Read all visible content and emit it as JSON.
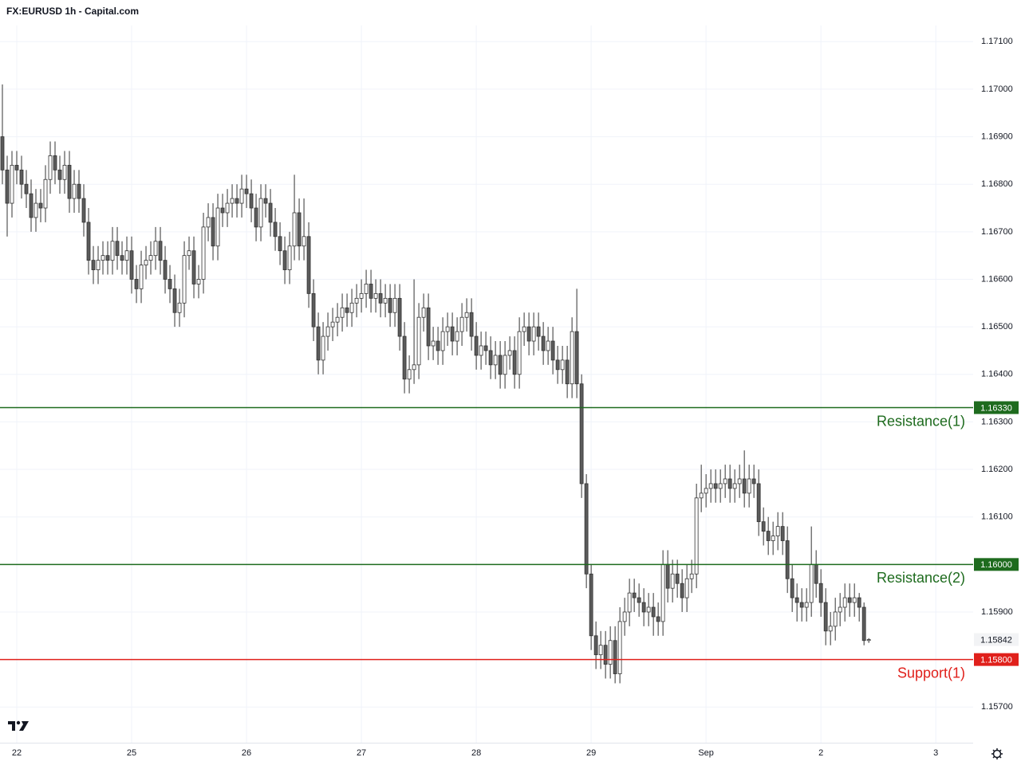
{
  "chart_data": {
    "type": "candlestick",
    "title": "FX:EURUSD 1h - Capital.com",
    "up_color": "#ffffff",
    "down_color": "#5b5b5b",
    "wick_color": "#333333",
    "grid": true,
    "open": [
      1.169,
      1.1683,
      1.1676,
      1.1684,
      1.1683,
      1.168,
      1.1678,
      1.1673,
      1.1676,
      1.1675,
      1.1681,
      1.1686,
      1.1683,
      1.1681,
      1.1684,
      1.1677,
      1.168,
      1.1677,
      1.1672,
      1.1664,
      1.1662,
      1.1664,
      1.1665,
      1.1664,
      1.1668,
      1.1665,
      1.1664,
      1.1666,
      1.166,
      1.1658,
      1.1663,
      1.1664,
      1.1665,
      1.1668,
      1.1664,
      1.166,
      1.1658,
      1.1653,
      1.1655,
      1.1665,
      1.1666,
      1.1659,
      1.166,
      1.1671,
      1.1673,
      1.1667,
      1.1675,
      1.1674,
      1.1676,
      1.1677,
      1.1676,
      1.1679,
      1.1678,
      1.1675,
      1.1671,
      1.1677,
      1.1676,
      1.1672,
      1.1669,
      1.1666,
      1.1662,
      1.1667,
      1.1674,
      1.1667,
      1.1669,
      1.1657,
      1.165,
      1.1643,
      1.1648,
      1.165,
      1.1651,
      1.1652,
      1.1654,
      1.1653,
      1.1655,
      1.1656,
      1.1657,
      1.1659,
      1.1656,
      1.1657,
      1.1655,
      1.1656,
      1.1653,
      1.1656,
      1.1648,
      1.1639,
      1.1641,
      1.1642,
      1.1652,
      1.1654,
      1.1646,
      1.1647,
      1.1645,
      1.1649,
      1.165,
      1.1647,
      1.1649,
      1.1652,
      1.1653,
      1.1648,
      1.1644,
      1.1646,
      1.1645,
      1.1642,
      1.1644,
      1.164,
      1.1644,
      1.1645,
      1.164,
      1.1649,
      1.165,
      1.1647,
      1.165,
      1.1648,
      1.1645,
      1.1647,
      1.1643,
      1.1641,
      1.1643,
      1.1638,
      1.1649,
      1.1638,
      1.1617,
      1.1598,
      1.1585,
      1.1581,
      1.1583,
      1.1579,
      1.1584,
      1.1577,
      1.1588,
      1.159,
      1.1594,
      1.1593,
      1.1592,
      1.159,
      1.1591,
      1.1589,
      1.1588,
      1.16,
      1.1595,
      1.1598,
      1.1596,
      1.1593,
      1.1597,
      1.1598,
      1.1614,
      1.1615,
      1.1616,
      1.1617,
      1.1616,
      1.1617,
      1.1618,
      1.1616,
      1.1617,
      1.1618,
      1.1615,
      1.1618,
      1.1617,
      1.1609,
      1.1607,
      1.1605,
      1.1606,
      1.1608,
      1.1605,
      1.1597,
      1.1593,
      1.1592,
      1.1591,
      1.1592,
      1.16,
      1.1596,
      1.1592,
      1.1586,
      1.1587,
      1.159,
      1.1591,
      1.1593,
      1.1592,
      1.1593,
      1.1591,
      1.1584
    ],
    "high": [
      1.1701,
      1.1686,
      1.1687,
      1.1687,
      1.1686,
      1.1683,
      1.1681,
      1.1679,
      1.1679,
      1.1684,
      1.1689,
      1.1689,
      1.1686,
      1.1687,
      1.1687,
      1.1683,
      1.1683,
      1.168,
      1.1675,
      1.1667,
      1.1667,
      1.1668,
      1.1668,
      1.1671,
      1.1671,
      1.1668,
      1.1669,
      1.1669,
      1.1663,
      1.1666,
      1.1667,
      1.1668,
      1.1671,
      1.1671,
      1.1667,
      1.1663,
      1.1661,
      1.1658,
      1.1668,
      1.1669,
      1.1669,
      1.1663,
      1.1674,
      1.1676,
      1.1676,
      1.1678,
      1.1678,
      1.1679,
      1.168,
      1.168,
      1.1682,
      1.1682,
      1.1681,
      1.1678,
      1.168,
      1.168,
      1.1679,
      1.1675,
      1.1672,
      1.1669,
      1.167,
      1.1682,
      1.1677,
      1.1677,
      1.1672,
      1.166,
      1.1653,
      1.1651,
      1.1653,
      1.1654,
      1.1655,
      1.1657,
      1.1657,
      1.1658,
      1.1659,
      1.166,
      1.1662,
      1.1662,
      1.166,
      1.166,
      1.1659,
      1.1659,
      1.1659,
      1.1659,
      1.1651,
      1.1644,
      1.166,
      1.1655,
      1.1657,
      1.1657,
      1.165,
      1.165,
      1.1652,
      1.1653,
      1.1653,
      1.1652,
      1.1655,
      1.1656,
      1.1656,
      1.1651,
      1.1649,
      1.1649,
      1.1648,
      1.1647,
      1.1647,
      1.1647,
      1.1648,
      1.1648,
      1.1652,
      1.1653,
      1.1653,
      1.1653,
      1.1653,
      1.1651,
      1.165,
      1.165,
      1.1646,
      1.1646,
      1.1646,
      1.1652,
      1.1658,
      1.164,
      1.1619,
      1.16,
      1.1588,
      1.1586,
      1.1586,
      1.1587,
      1.1587,
      1.1591,
      1.1593,
      1.1597,
      1.1597,
      1.1596,
      1.1595,
      1.1594,
      1.1594,
      1.1592,
      1.1603,
      1.1603,
      1.1601,
      1.1601,
      1.1599,
      1.16,
      1.1601,
      1.1617,
      1.1621,
      1.1619,
      1.162,
      1.162,
      1.162,
      1.1621,
      1.1621,
      1.162,
      1.1621,
      1.1624,
      1.1621,
      1.1621,
      1.162,
      1.1612,
      1.161,
      1.1609,
      1.1611,
      1.1611,
      1.1608,
      1.16,
      1.1596,
      1.1595,
      1.1595,
      1.1608,
      1.1603,
      1.1599,
      1.1595,
      1.159,
      1.1593,
      1.1594,
      1.1596,
      1.1596,
      1.1596,
      1.1594,
      1.1592,
      1.15845
    ],
    "low": [
      1.168,
      1.1669,
      1.1673,
      1.168,
      1.1677,
      1.1675,
      1.167,
      1.167,
      1.1672,
      1.1672,
      1.1678,
      1.168,
      1.1678,
      1.1678,
      1.1674,
      1.1674,
      1.1674,
      1.1669,
      1.1661,
      1.1659,
      1.1659,
      1.1661,
      1.1661,
      1.1661,
      1.1662,
      1.1661,
      1.1661,
      1.1657,
      1.1655,
      1.1655,
      1.166,
      1.1661,
      1.1662,
      1.1661,
      1.1657,
      1.1655,
      1.165,
      1.165,
      1.1652,
      1.1662,
      1.1656,
      1.1656,
      1.1657,
      1.1668,
      1.1664,
      1.1664,
      1.1671,
      1.1671,
      1.1673,
      1.1673,
      1.1673,
      1.1675,
      1.1672,
      1.1668,
      1.1668,
      1.1673,
      1.1669,
      1.1666,
      1.1663,
      1.1659,
      1.1659,
      1.1664,
      1.1664,
      1.1664,
      1.1654,
      1.1647,
      1.164,
      1.164,
      1.1645,
      1.1647,
      1.1648,
      1.1649,
      1.165,
      1.165,
      1.1652,
      1.1653,
      1.1654,
      1.1653,
      1.1653,
      1.1652,
      1.1652,
      1.165,
      1.165,
      1.1645,
      1.1636,
      1.1636,
      1.1638,
      1.1639,
      1.1649,
      1.1643,
      1.1643,
      1.1642,
      1.1642,
      1.1646,
      1.1644,
      1.1644,
      1.1646,
      1.1649,
      1.1645,
      1.1641,
      1.1641,
      1.1642,
      1.1639,
      1.1639,
      1.1637,
      1.1637,
      1.1641,
      1.1637,
      1.1637,
      1.1646,
      1.1644,
      1.1644,
      1.1645,
      1.1642,
      1.1642,
      1.164,
      1.1638,
      1.1638,
      1.1635,
      1.1635,
      1.1635,
      1.1614,
      1.1595,
      1.1582,
      1.1578,
      1.1578,
      1.1576,
      1.1576,
      1.1575,
      1.1575,
      1.1585,
      1.1587,
      1.159,
      1.1589,
      1.1587,
      1.1587,
      1.1585,
      1.1585,
      1.1585,
      1.1592,
      1.1592,
      1.1593,
      1.159,
      1.159,
      1.1594,
      1.1595,
      1.1611,
      1.1612,
      1.1613,
      1.1613,
      1.1613,
      1.1614,
      1.1613,
      1.1613,
      1.1614,
      1.1612,
      1.1612,
      1.1614,
      1.1606,
      1.1604,
      1.1602,
      1.1602,
      1.1603,
      1.1602,
      1.1594,
      1.159,
      1.1588,
      1.1588,
      1.1588,
      1.1589,
      1.1593,
      1.1589,
      1.1583,
      1.1583,
      1.1584,
      1.1587,
      1.1588,
      1.1589,
      1.1589,
      1.1588,
      1.1583,
      1.15835
    ],
    "close": [
      1.1683,
      1.1676,
      1.1684,
      1.1683,
      1.168,
      1.1678,
      1.1673,
      1.1676,
      1.1675,
      1.1681,
      1.1686,
      1.1683,
      1.1681,
      1.1684,
      1.1677,
      1.168,
      1.1677,
      1.1672,
      1.1664,
      1.1662,
      1.1664,
      1.1665,
      1.1664,
      1.1668,
      1.1665,
      1.1664,
      1.1666,
      1.166,
      1.1658,
      1.1663,
      1.1664,
      1.1665,
      1.1668,
      1.1664,
      1.166,
      1.1658,
      1.1653,
      1.1655,
      1.1665,
      1.1666,
      1.1659,
      1.166,
      1.1671,
      1.1673,
      1.1667,
      1.1675,
      1.1674,
      1.1676,
      1.1677,
      1.1676,
      1.1679,
      1.1678,
      1.1675,
      1.1671,
      1.1677,
      1.1676,
      1.1672,
      1.1669,
      1.1666,
      1.1662,
      1.1667,
      1.1674,
      1.1667,
      1.1669,
      1.1657,
      1.165,
      1.1643,
      1.1648,
      1.165,
      1.1651,
      1.1652,
      1.1654,
      1.1653,
      1.1655,
      1.1656,
      1.1657,
      1.1659,
      1.1656,
      1.1657,
      1.1655,
      1.1656,
      1.1653,
      1.1656,
      1.1648,
      1.1639,
      1.1641,
      1.1642,
      1.1652,
      1.1654,
      1.1646,
      1.1647,
      1.1645,
      1.1649,
      1.165,
      1.1647,
      1.1649,
      1.1652,
      1.1653,
      1.1648,
      1.1644,
      1.1646,
      1.1645,
      1.1642,
      1.1644,
      1.164,
      1.1644,
      1.1645,
      1.164,
      1.1649,
      1.165,
      1.1647,
      1.165,
      1.1648,
      1.1645,
      1.1647,
      1.1643,
      1.1641,
      1.1643,
      1.1638,
      1.1649,
      1.1638,
      1.1617,
      1.1598,
      1.1585,
      1.1581,
      1.1583,
      1.1579,
      1.1584,
      1.1577,
      1.1588,
      1.159,
      1.1594,
      1.1593,
      1.1592,
      1.159,
      1.1591,
      1.1589,
      1.1588,
      1.16,
      1.1595,
      1.1598,
      1.1596,
      1.1593,
      1.1597,
      1.1598,
      1.1614,
      1.1615,
      1.1616,
      1.1617,
      1.1616,
      1.1617,
      1.1618,
      1.1616,
      1.1617,
      1.1618,
      1.1615,
      1.1618,
      1.1617,
      1.1609,
      1.1607,
      1.1605,
      1.1606,
      1.1608,
      1.1605,
      1.1597,
      1.1593,
      1.1592,
      1.1591,
      1.1592,
      1.16,
      1.1596,
      1.1592,
      1.1586,
      1.1587,
      1.159,
      1.1591,
      1.1593,
      1.1592,
      1.1593,
      1.1591,
      1.1584,
      1.15842
    ],
    "xlim": [
      -0.5,
      202.8
    ],
    "xticks": [
      {
        "value": 3,
        "label": "22"
      },
      {
        "value": 27,
        "label": "25"
      },
      {
        "value": 51,
        "label": "26"
      },
      {
        "value": 75,
        "label": "27"
      },
      {
        "value": 99,
        "label": "28"
      },
      {
        "value": 123,
        "label": "29"
      },
      {
        "value": 147,
        "label": "Sep"
      },
      {
        "value": 171,
        "label": "2"
      },
      {
        "value": 195,
        "label": "3"
      }
    ],
    "ylim": [
      1.15625,
      1.17134
    ],
    "yticks": [
      {
        "value": 1.157,
        "label": "1.15700"
      },
      {
        "value": 1.158,
        "label": "1.15800"
      },
      {
        "value": 1.159,
        "label": "1.15900"
      },
      {
        "value": 1.16,
        "label": "1.16000"
      },
      {
        "value": 1.161,
        "label": "1.16100"
      },
      {
        "value": 1.162,
        "label": "1.16200"
      },
      {
        "value": 1.163,
        "label": "1.16300"
      },
      {
        "value": 1.164,
        "label": "1.16400"
      },
      {
        "value": 1.165,
        "label": "1.16500"
      },
      {
        "value": 1.166,
        "label": "1.16600"
      },
      {
        "value": 1.167,
        "label": "1.16700"
      },
      {
        "value": 1.168,
        "label": "1.16800"
      },
      {
        "value": 1.169,
        "label": "1.16900"
      },
      {
        "value": 1.17,
        "label": "1.17000"
      },
      {
        "value": 1.171,
        "label": "1.17100"
      }
    ],
    "levels": [
      {
        "name": "Resistance(1)",
        "value": 1.1633,
        "label": "1.16330",
        "color": "#1e6b1e"
      },
      {
        "name": "Resistance(2)",
        "value": 1.16,
        "label": "1.16000",
        "color": "#1e6b1e"
      },
      {
        "name": "Support(1)",
        "value": 1.158,
        "label": "1.15800",
        "color": "#e0201b"
      }
    ],
    "last_price": 1.15842
  }
}
